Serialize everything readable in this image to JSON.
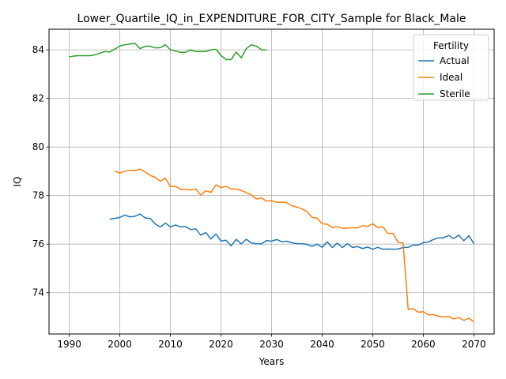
{
  "chart_data": {
    "type": "line",
    "title": "Lower_Quartile_IQ_in_EXPENDITURE_FOR_CITY_Sample for Black_Male",
    "xlabel": "Years",
    "ylabel": "IQ",
    "xlim": [
      1986,
      2074
    ],
    "ylim": [
      72.3,
      84.85
    ],
    "xticks": [
      1990,
      2000,
      2010,
      2020,
      2030,
      2040,
      2050,
      2060,
      2070
    ],
    "yticks": [
      74,
      76,
      78,
      80,
      82,
      84
    ],
    "grid": true,
    "legend": {
      "title": "Fertility",
      "position": "top-right"
    },
    "series": [
      {
        "name": "Actual",
        "color": "#1f77b4",
        "x": [
          1998,
          1999,
          2000,
          2001,
          2002,
          2003,
          2004,
          2005,
          2006,
          2007,
          2008,
          2009,
          2010,
          2011,
          2012,
          2013,
          2014,
          2015,
          2016,
          2017,
          2018,
          2019,
          2020,
          2021,
          2022,
          2023,
          2024,
          2025,
          2026,
          2027,
          2028,
          2029,
          2030,
          2031,
          2032,
          2033,
          2034,
          2035,
          2036,
          2037,
          2038,
          2039,
          2040,
          2041,
          2042,
          2043,
          2044,
          2045,
          2046,
          2047,
          2048,
          2049,
          2050,
          2051,
          2052,
          2053,
          2054,
          2055,
          2056,
          2057,
          2058,
          2059,
          2060,
          2061,
          2062,
          2063,
          2064,
          2065,
          2066,
          2067,
          2068,
          2069,
          2070
        ],
        "values": [
          77.03,
          77.06,
          77.1,
          77.2,
          77.12,
          77.15,
          77.24,
          77.08,
          77.06,
          76.83,
          76.7,
          76.87,
          76.71,
          76.79,
          76.71,
          76.72,
          76.6,
          76.63,
          76.37,
          76.48,
          76.21,
          76.42,
          76.13,
          76.16,
          75.93,
          76.2,
          76.01,
          76.2,
          76.05,
          76.02,
          76.01,
          76.15,
          76.12,
          76.19,
          76.1,
          76.12,
          76.06,
          76.02,
          76.02,
          75.99,
          75.91,
          76.0,
          75.87,
          76.1,
          75.86,
          76.04,
          75.86,
          76.02,
          75.86,
          75.9,
          75.82,
          75.88,
          75.79,
          75.87,
          75.79,
          75.8,
          75.79,
          75.8,
          75.86,
          75.87,
          75.96,
          75.96,
          76.06,
          76.09,
          76.19,
          76.26,
          76.26,
          76.36,
          76.23,
          76.37,
          76.14,
          76.35,
          76.02
        ]
      },
      {
        "name": "Ideal",
        "color": "#ff7f0e",
        "x": [
          1999,
          2000,
          2001,
          2002,
          2003,
          2004,
          2005,
          2006,
          2007,
          2008,
          2009,
          2010,
          2011,
          2012,
          2013,
          2014,
          2015,
          2016,
          2017,
          2018,
          2019,
          2020,
          2021,
          2022,
          2023,
          2024,
          2025,
          2026,
          2027,
          2028,
          2029,
          2030,
          2031,
          2032,
          2033,
          2034,
          2035,
          2036,
          2037,
          2038,
          2039,
          2040,
          2041,
          2042,
          2043,
          2044,
          2045,
          2046,
          2047,
          2048,
          2049,
          2050,
          2051,
          2052,
          2053,
          2054,
          2055,
          2056,
          2057,
          2058,
          2059,
          2060,
          2061,
          2062,
          2063,
          2064,
          2065,
          2066,
          2067,
          2068,
          2069,
          2070
        ],
        "values": [
          79.0,
          78.93,
          79.0,
          79.04,
          79.03,
          79.09,
          78.97,
          78.83,
          78.75,
          78.59,
          78.72,
          78.37,
          78.38,
          78.26,
          78.26,
          78.23,
          78.27,
          78.02,
          78.2,
          78.13,
          78.44,
          78.33,
          78.38,
          78.27,
          78.27,
          78.21,
          78.12,
          78.03,
          77.86,
          77.9,
          77.77,
          77.79,
          77.72,
          77.73,
          77.71,
          77.58,
          77.53,
          77.45,
          77.34,
          77.1,
          77.07,
          76.84,
          76.82,
          76.68,
          76.72,
          76.65,
          76.66,
          76.68,
          76.67,
          76.76,
          76.73,
          76.84,
          76.68,
          76.71,
          76.44,
          76.44,
          76.07,
          76.05,
          73.32,
          73.34,
          73.2,
          73.22,
          73.09,
          73.1,
          73.03,
          73.0,
          73.02,
          72.92,
          72.98,
          72.86,
          72.95,
          72.8
        ]
      },
      {
        "name": "Sterile",
        "color": "#2ca02c",
        "x": [
          1990,
          1991,
          1992,
          1993,
          1994,
          1995,
          1996,
          1997,
          1998,
          1999,
          2000,
          2001,
          2002,
          2003,
          2004,
          2005,
          2006,
          2007,
          2008,
          2009,
          2010,
          2011,
          2012,
          2013,
          2014,
          2015,
          2016,
          2017,
          2018,
          2019,
          2020,
          2021,
          2022,
          2023,
          2024,
          2025,
          2026,
          2027,
          2028,
          2029
        ],
        "values": [
          83.71,
          83.75,
          83.76,
          83.76,
          83.76,
          83.79,
          83.86,
          83.93,
          83.91,
          84.03,
          84.16,
          84.21,
          84.24,
          84.27,
          84.05,
          84.15,
          84.15,
          84.08,
          84.09,
          84.21,
          84.0,
          83.95,
          83.9,
          83.9,
          84.0,
          83.93,
          83.93,
          83.93,
          84.0,
          84.02,
          83.77,
          83.6,
          83.6,
          83.91,
          83.67,
          84.05,
          84.21,
          84.15,
          84.01,
          83.99
        ]
      }
    ]
  }
}
